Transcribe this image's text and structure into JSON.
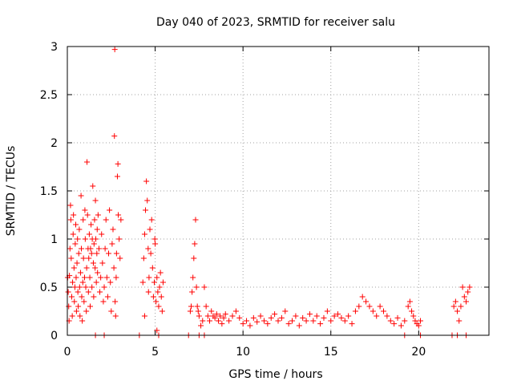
{
  "chart_data": {
    "type": "scatter",
    "title": "Day 040 of 2023, SRMTID for receiver salu",
    "xlabel": "GPS time / hours",
    "ylabel": "SRMTID / TECUs",
    "xlim": [
      0,
      24
    ],
    "ylim": [
      0,
      3
    ],
    "x_ticks": [
      0,
      5,
      10,
      15,
      20
    ],
    "x_tick_labels": [
      "0",
      "5",
      "10",
      "15",
      "20"
    ],
    "y_ticks": [
      0,
      0.5,
      1,
      1.5,
      2,
      2.5,
      3
    ],
    "y_tick_labels": [
      "0",
      "0.5",
      "1",
      "1.5",
      "2",
      "2.5",
      "3"
    ],
    "grid": true,
    "marker": "+",
    "color": "#ff0000",
    "series": [
      {
        "name": "SRMTID",
        "points": [
          [
            0.02,
            0.6
          ],
          [
            0.05,
            0.45
          ],
          [
            0.08,
            0.3
          ],
          [
            0.1,
            0.15
          ],
          [
            0.12,
            0.62
          ],
          [
            0.15,
            0.9
          ],
          [
            0.18,
            1.35
          ],
          [
            0.2,
            1.2
          ],
          [
            0.22,
            0.8
          ],
          [
            0.25,
            0.4
          ],
          [
            0.28,
            0.2
          ],
          [
            0.3,
            0.55
          ],
          [
            0.33,
            1.05
          ],
          [
            0.35,
            1.25
          ],
          [
            0.38,
            0.7
          ],
          [
            0.4,
            0.35
          ],
          [
            0.43,
            0.5
          ],
          [
            0.45,
            0.95
          ],
          [
            0.48,
            1.15
          ],
          [
            0.5,
            0.6
          ],
          [
            0.52,
            0.25
          ],
          [
            0.55,
            0.75
          ],
          [
            0.58,
            1.0
          ],
          [
            0.6,
            0.45
          ],
          [
            0.62,
            0.3
          ],
          [
            0.65,
            0.85
          ],
          [
            0.68,
            1.1
          ],
          [
            0.7,
            0.5
          ],
          [
            0.72,
            0.2
          ],
          [
            0.75,
            0.65
          ],
          [
            0.78,
            1.45
          ],
          [
            0.8,
            0.9
          ],
          [
            0.82,
            0.4
          ],
          [
            0.85,
            0.15
          ],
          [
            0.88,
            0.55
          ],
          [
            0.9,
            1.2
          ],
          [
            0.92,
            0.8
          ],
          [
            0.95,
            0.35
          ],
          [
            0.98,
            0.6
          ],
          [
            1.0,
            1.3
          ],
          [
            1.02,
            1.0
          ],
          [
            1.05,
            0.5
          ],
          [
            1.08,
            0.25
          ],
          [
            1.1,
            0.7
          ],
          [
            1.12,
            1.8
          ],
          [
            1.15,
            1.25
          ],
          [
            1.18,
            0.9
          ],
          [
            1.2,
            0.45
          ],
          [
            1.22,
            0.8
          ],
          [
            1.25,
            1.05
          ],
          [
            1.28,
            0.6
          ],
          [
            1.3,
            0.3
          ],
          [
            1.32,
            0.9
          ],
          [
            1.35,
            1.15
          ],
          [
            1.38,
            0.85
          ],
          [
            1.4,
            0.5
          ],
          [
            1.42,
            1.0
          ],
          [
            1.45,
            1.55
          ],
          [
            1.48,
            0.75
          ],
          [
            1.5,
            0.4
          ],
          [
            1.52,
            0.95
          ],
          [
            1.55,
            1.2
          ],
          [
            1.58,
            0.7
          ],
          [
            1.6,
            1.4
          ],
          [
            1.62,
            1.0
          ],
          [
            1.65,
            0.55
          ],
          [
            1.68,
            0.85
          ],
          [
            1.7,
            1.1
          ],
          [
            1.72,
            0.65
          ],
          [
            1.75,
            1.25
          ],
          [
            1.8,
            0.9
          ],
          [
            1.85,
            0.45
          ],
          [
            1.9,
            0.6
          ],
          [
            1.95,
            1.05
          ],
          [
            2.0,
            0.75
          ],
          [
            2.05,
            0.35
          ],
          [
            2.1,
            0.5
          ],
          [
            2.15,
            0.9
          ],
          [
            2.2,
            1.2
          ],
          [
            2.25,
            0.6
          ],
          [
            2.3,
            0.4
          ],
          [
            2.35,
            0.85
          ],
          [
            2.4,
            1.3
          ],
          [
            2.45,
            0.55
          ],
          [
            2.5,
            0.25
          ],
          [
            2.55,
            0.95
          ],
          [
            2.6,
            1.1
          ],
          [
            2.65,
            0.7
          ],
          [
            2.68,
            2.07
          ],
          [
            2.7,
            2.97
          ],
          [
            2.72,
            0.35
          ],
          [
            2.75,
            0.2
          ],
          [
            2.78,
            0.6
          ],
          [
            2.8,
            0.85
          ],
          [
            2.85,
            1.65
          ],
          [
            2.88,
            1.78
          ],
          [
            2.9,
            1.25
          ],
          [
            2.95,
            1.0
          ],
          [
            3.0,
            0.8
          ],
          [
            3.05,
            1.2
          ],
          [
            4.3,
            0.55
          ],
          [
            4.35,
            0.8
          ],
          [
            4.4,
            1.05
          ],
          [
            4.45,
            1.3
          ],
          [
            4.5,
            1.6
          ],
          [
            4.55,
            1.4
          ],
          [
            4.6,
            0.9
          ],
          [
            4.62,
            0.45
          ],
          [
            4.65,
            0.6
          ],
          [
            4.7,
            1.1
          ],
          [
            4.75,
            0.85
          ],
          [
            4.8,
            1.2
          ],
          [
            4.85,
            0.7
          ],
          [
            4.9,
            0.4
          ],
          [
            4.95,
            0.55
          ],
          [
            5.0,
            0.95
          ],
          [
            5.05,
            0.35
          ],
          [
            5.1,
            0.6
          ],
          [
            5.15,
            0.45
          ],
          [
            5.2,
            0.3
          ],
          [
            5.25,
            0.5
          ],
          [
            5.3,
            0.65
          ],
          [
            5.35,
            0.4
          ],
          [
            5.4,
            0.25
          ],
          [
            5.45,
            0.55
          ],
          [
            5.1,
            0.05
          ],
          [
            4.4,
            0.2
          ],
          [
            4.98,
            1.0
          ],
          [
            7.0,
            0.25
          ],
          [
            7.05,
            0.3
          ],
          [
            7.1,
            0.45
          ],
          [
            7.15,
            0.6
          ],
          [
            7.2,
            0.8
          ],
          [
            7.25,
            0.95
          ],
          [
            7.3,
            1.2
          ],
          [
            7.35,
            0.5
          ],
          [
            7.4,
            0.3
          ],
          [
            7.45,
            0.25
          ],
          [
            7.5,
            0.2
          ],
          [
            7.6,
            0.1
          ],
          [
            7.7,
            0.15
          ],
          [
            7.8,
            0.5
          ],
          [
            7.9,
            0.3
          ],
          [
            8.0,
            0.2
          ],
          [
            8.1,
            0.15
          ],
          [
            8.2,
            0.25
          ],
          [
            8.3,
            0.2
          ],
          [
            8.4,
            0.18
          ],
          [
            8.5,
            0.22
          ],
          [
            8.6,
            0.15
          ],
          [
            8.7,
            0.2
          ],
          [
            8.8,
            0.12
          ],
          [
            8.9,
            0.18
          ],
          [
            9.0,
            0.22
          ],
          [
            9.2,
            0.15
          ],
          [
            9.4,
            0.2
          ],
          [
            9.6,
            0.25
          ],
          [
            9.8,
            0.18
          ],
          [
            10.0,
            0.12
          ],
          [
            10.2,
            0.15
          ],
          [
            10.4,
            0.1
          ],
          [
            10.6,
            0.18
          ],
          [
            10.8,
            0.14
          ],
          [
            11.0,
            0.2
          ],
          [
            11.2,
            0.15
          ],
          [
            11.4,
            0.12
          ],
          [
            11.6,
            0.18
          ],
          [
            11.8,
            0.22
          ],
          [
            12.0,
            0.15
          ],
          [
            12.2,
            0.18
          ],
          [
            12.4,
            0.25
          ],
          [
            12.6,
            0.12
          ],
          [
            12.8,
            0.15
          ],
          [
            13.0,
            0.2
          ],
          [
            13.2,
            0.1
          ],
          [
            13.4,
            0.18
          ],
          [
            13.6,
            0.15
          ],
          [
            13.8,
            0.22
          ],
          [
            14.0,
            0.15
          ],
          [
            14.2,
            0.2
          ],
          [
            14.4,
            0.12
          ],
          [
            14.6,
            0.18
          ],
          [
            14.8,
            0.25
          ],
          [
            15.0,
            0.15
          ],
          [
            15.2,
            0.2
          ],
          [
            15.4,
            0.22
          ],
          [
            15.6,
            0.18
          ],
          [
            15.8,
            0.15
          ],
          [
            16.0,
            0.2
          ],
          [
            16.2,
            0.12
          ],
          [
            16.4,
            0.25
          ],
          [
            16.6,
            0.3
          ],
          [
            16.8,
            0.4
          ],
          [
            17.0,
            0.35
          ],
          [
            17.2,
            0.3
          ],
          [
            17.4,
            0.25
          ],
          [
            17.6,
            0.2
          ],
          [
            17.8,
            0.3
          ],
          [
            18.0,
            0.25
          ],
          [
            18.2,
            0.2
          ],
          [
            18.4,
            0.15
          ],
          [
            18.6,
            0.12
          ],
          [
            18.8,
            0.18
          ],
          [
            19.0,
            0.1
          ],
          [
            19.2,
            0.15
          ],
          [
            19.4,
            0.3
          ],
          [
            19.5,
            0.35
          ],
          [
            19.6,
            0.25
          ],
          [
            19.7,
            0.2
          ],
          [
            19.8,
            0.15
          ],
          [
            19.9,
            0.12
          ],
          [
            20.0,
            0.1
          ],
          [
            20.1,
            0.15
          ],
          [
            22.0,
            0.3
          ],
          [
            22.1,
            0.35
          ],
          [
            22.2,
            0.25
          ],
          [
            22.3,
            0.15
          ],
          [
            22.4,
            0.3
          ],
          [
            22.5,
            0.5
          ],
          [
            22.6,
            0.4
          ],
          [
            22.7,
            0.35
          ],
          [
            22.8,
            0.45
          ],
          [
            22.9,
            0.5
          ],
          [
            1.6,
            0
          ],
          [
            2.1,
            0
          ],
          [
            4.1,
            0
          ],
          [
            5.2,
            0
          ],
          [
            6.9,
            0
          ],
          [
            7.5,
            0
          ],
          [
            7.8,
            0
          ],
          [
            19.2,
            0
          ],
          [
            20.1,
            0
          ],
          [
            21.9,
            0
          ],
          [
            22.2,
            0
          ],
          [
            22.7,
            0
          ]
        ]
      }
    ]
  }
}
